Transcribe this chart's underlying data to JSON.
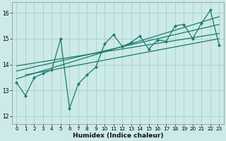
{
  "title": "",
  "xlabel": "Humidex (Indice chaleur)",
  "ylabel": "",
  "bg_color": "#cceae7",
  "grid_color": "#aacfcc",
  "line_color": "#1a7a6e",
  "xlim": [
    -0.5,
    23.5
  ],
  "ylim": [
    11.7,
    16.4
  ],
  "yticks": [
    12,
    13,
    14,
    15,
    16
  ],
  "xticks": [
    0,
    1,
    2,
    3,
    4,
    5,
    6,
    7,
    8,
    9,
    10,
    11,
    12,
    13,
    14,
    15,
    16,
    17,
    18,
    19,
    20,
    21,
    22,
    23
  ],
  "main_y": [
    13.3,
    12.8,
    13.5,
    13.65,
    13.8,
    15.0,
    12.3,
    13.25,
    13.6,
    13.9,
    14.8,
    15.15,
    14.7,
    14.85,
    15.1,
    14.6,
    14.95,
    14.9,
    15.5,
    15.55,
    15.0,
    15.6,
    16.1,
    14.75
  ],
  "trend_lines": [
    [
      [
        0,
        23
      ],
      [
        13.75,
        15.55
      ]
    ],
    [
      [
        0,
        23
      ],
      [
        13.45,
        15.85
      ]
    ],
    [
      [
        0,
        23
      ],
      [
        13.95,
        15.2
      ]
    ],
    [
      [
        1,
        23
      ],
      [
        13.6,
        15.0
      ]
    ]
  ],
  "xlabel_fontsize": 6.5,
  "tick_fontsize": 5.2,
  "linewidth": 0.9,
  "marker_size": 2.2
}
